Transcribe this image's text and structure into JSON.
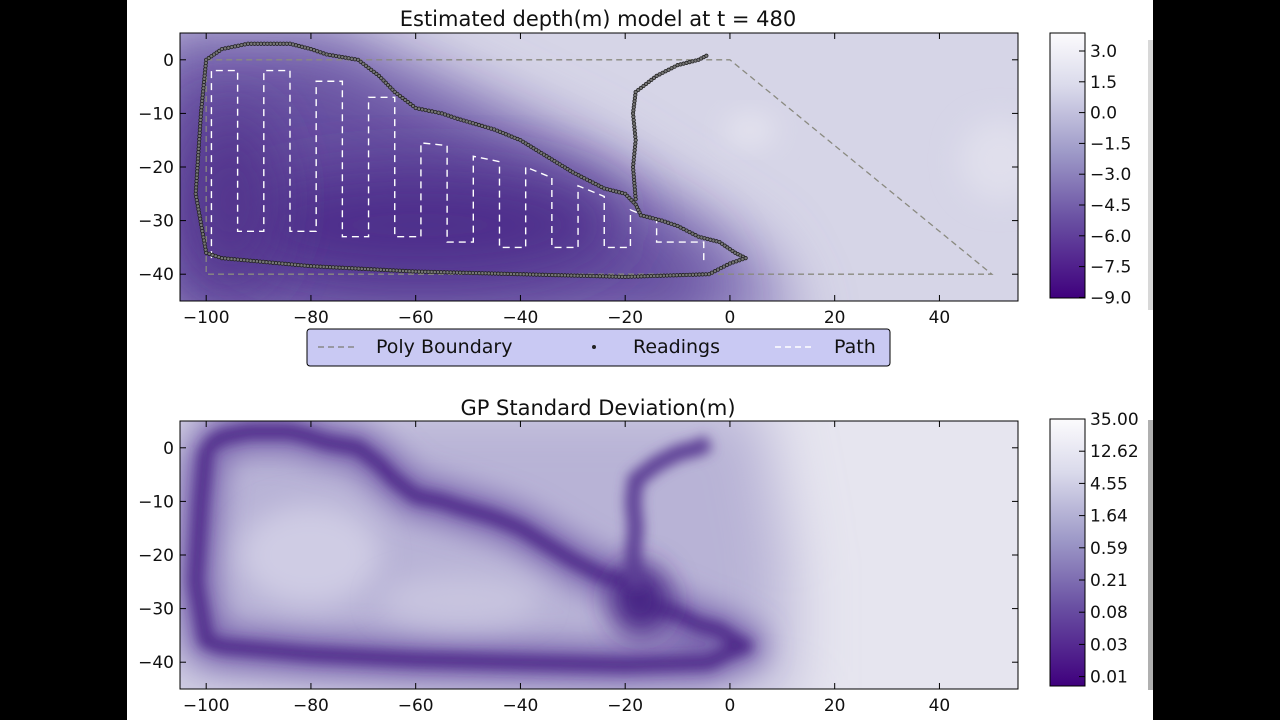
{
  "chart_data": [
    {
      "type": "heatmap",
      "subtype": "filled-contour",
      "title": "Estimated depth(m) model at t = 480",
      "xlim": [
        -105,
        55
      ],
      "ylim": [
        -45,
        5
      ],
      "xticks": [
        -100,
        -80,
        -60,
        -40,
        -20,
        0,
        20,
        40
      ],
      "yticks": [
        0,
        -10,
        -20,
        -30,
        -40
      ],
      "xtick_labels": [
        "−100",
        "−80",
        "−60",
        "−40",
        "−20",
        "0",
        "20",
        "40"
      ],
      "ytick_labels": [
        "0",
        "−10",
        "−20",
        "−30",
        "−40"
      ],
      "colormap": "Purples",
      "colorbar": {
        "range": [
          -9.0,
          3.9
        ],
        "ticks": [
          3.0,
          1.5,
          0.0,
          -1.5,
          -3.0,
          -4.5,
          -6.0,
          -7.5,
          -9.0
        ],
        "tick_labels": [
          "3.0",
          "1.5",
          "0.0",
          "−1.5",
          "−3.0",
          "−4.5",
          "−6.0",
          "−7.5",
          "−9.0"
        ]
      },
      "legend": {
        "placement": "below",
        "entries": [
          "Poly Boundary",
          "Readings",
          "Path"
        ]
      },
      "series": [
        {
          "name": "Poly Boundary",
          "style": "gray-dashed",
          "points": [
            [
              -100,
              0
            ],
            [
              0,
              0
            ],
            [
              50,
              -40
            ],
            [
              -100,
              -40
            ],
            [
              -100,
              0
            ]
          ]
        },
        {
          "name": "Path",
          "style": "white-dashed",
          "points": [
            [
              -99,
              -37
            ],
            [
              -99,
              -2
            ],
            [
              -94,
              -2
            ],
            [
              -94,
              -32
            ],
            [
              -89,
              -32
            ],
            [
              -89,
              -2
            ],
            [
              -84,
              -2
            ],
            [
              -84,
              -32
            ],
            [
              -79,
              -32
            ],
            [
              -79,
              -4
            ],
            [
              -74,
              -4
            ],
            [
              -74,
              -33
            ],
            [
              -69,
              -33
            ],
            [
              -69,
              -7
            ],
            [
              -64,
              -7
            ],
            [
              -64,
              -33
            ],
            [
              -59,
              -33
            ],
            [
              -59,
              -15.5
            ],
            [
              -54,
              -16
            ],
            [
              -54,
              -34
            ],
            [
              -49,
              -34
            ],
            [
              -49,
              -18
            ],
            [
              -44,
              -19
            ],
            [
              -44,
              -35
            ],
            [
              -39,
              -35
            ],
            [
              -39,
              -20
            ],
            [
              -34,
              -22
            ],
            [
              -34,
              -35
            ],
            [
              -29,
              -35
            ],
            [
              -29,
              -23.5
            ],
            [
              -24,
              -25.5
            ],
            [
              -24,
              -35
            ],
            [
              -19,
              -35
            ],
            [
              -19,
              -28
            ],
            [
              -14,
              -30
            ],
            [
              -14,
              -34
            ],
            [
              -5,
              -34
            ],
            [
              -5,
              -38
            ]
          ]
        },
        {
          "name": "Readings",
          "style": "black-dots",
          "points": [
            [
              -100,
              0
            ],
            [
              -97,
              2
            ],
            [
              -92,
              3
            ],
            [
              -84,
              3
            ],
            [
              -80,
              2
            ],
            [
              -77,
              1
            ],
            [
              -71,
              0
            ],
            [
              -67,
              -3
            ],
            [
              -64,
              -6
            ],
            [
              -60,
              -9
            ],
            [
              -55,
              -10
            ],
            [
              -52,
              -11
            ],
            [
              -45,
              -13
            ],
            [
              -40,
              -15
            ],
            [
              -35,
              -18
            ],
            [
              -30,
              -21
            ],
            [
              -24,
              -24
            ],
            [
              -20,
              -25
            ],
            [
              -18,
              -27
            ],
            [
              -17,
              -29
            ],
            [
              -13,
              -30
            ],
            [
              -10,
              -31
            ],
            [
              -6,
              -33
            ],
            [
              -2,
              -34
            ],
            [
              1,
              -36
            ],
            [
              3,
              -37
            ],
            [
              0,
              -38
            ],
            [
              -4,
              -40
            ],
            [
              -20,
              -40.5
            ],
            [
              -40,
              -40
            ],
            [
              -60,
              -39.5
            ],
            [
              -80,
              -38.5
            ],
            [
              -97,
              -37
            ],
            [
              -100,
              -36
            ],
            [
              -102,
              -25
            ],
            [
              -101,
              -10
            ],
            [
              -100,
              0
            ]
          ],
          "branch": [
            [
              -18,
              -26
            ],
            [
              -18.5,
              -20
            ],
            [
              -18,
              -15
            ],
            [
              -18.5,
              -10
            ],
            [
              -18,
              -6
            ],
            [
              -14,
              -3
            ],
            [
              -10,
              -1
            ],
            [
              -6,
              0
            ],
            [
              -4,
              1
            ]
          ]
        }
      ]
    },
    {
      "type": "heatmap",
      "subtype": "filled-contour",
      "title": "GP Standard Deviation(m)",
      "xlim": [
        -105,
        55
      ],
      "ylim": [
        -45,
        5
      ],
      "xticks": [
        -100,
        -80,
        -60,
        -40,
        -20,
        0,
        20,
        40
      ],
      "yticks": [
        0,
        -10,
        -20,
        -30,
        -40
      ],
      "xtick_labels": [
        "−100",
        "−80",
        "−60",
        "−40",
        "−20",
        "0",
        "20",
        "40"
      ],
      "ytick_labels": [
        "0",
        "−10",
        "−20",
        "−30",
        "−40"
      ],
      "colormap": "Purples",
      "colorbar": {
        "scale": "log",
        "range": [
          0.01,
          35.0
        ],
        "ticks": [
          35.0,
          12.62,
          4.55,
          1.64,
          0.59,
          0.21,
          0.08,
          0.03,
          0.01
        ],
        "tick_labels": [
          "35.00",
          "12.62",
          "4.55",
          "1.64",
          "0.59",
          "0.21",
          "0.08",
          "0.03",
          "0.01"
        ]
      }
    }
  ]
}
